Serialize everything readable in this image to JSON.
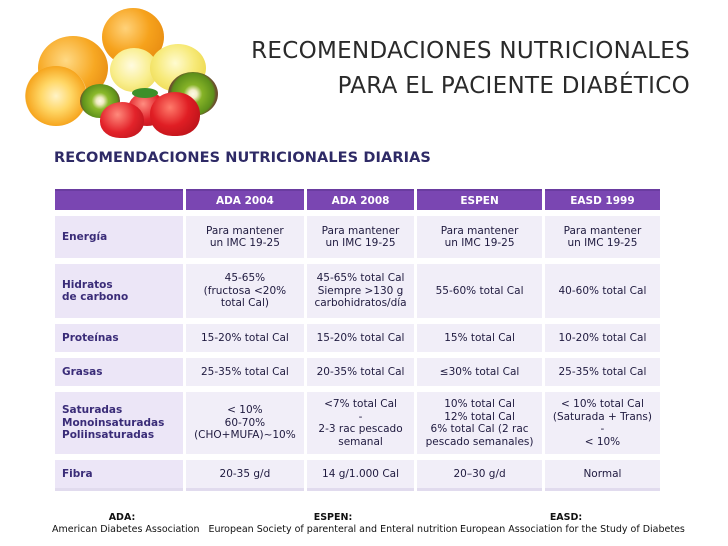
{
  "title": {
    "line1": "RECOMENDACIONES NUTRICIONALES",
    "line2": "PARA EL PACIENTE DIABÉTICO"
  },
  "table_heading": "RECOMENDACIONES NUTRICIONALES DIARIAS",
  "table": {
    "columns": [
      "ADA 2004",
      "ADA 2008",
      "ESPEN",
      "EASD 1999"
    ],
    "rows": [
      {
        "label": [
          "Energía"
        ],
        "cells": [
          [
            "Para mantener",
            "un IMC 19-25"
          ],
          [
            "Para mantener",
            "un IMC 19-25"
          ],
          [
            "Para mantener",
            "un IMC 19-25"
          ],
          [
            "Para mantener",
            "un IMC 19-25"
          ]
        ]
      },
      {
        "label": [
          "Hidratos",
          "de carbono"
        ],
        "cells": [
          [
            "45-65%",
            "(fructosa <20%",
            "total Cal)"
          ],
          [
            "45-65% total Cal",
            "Siempre >130 g",
            "carbohidratos/día"
          ],
          [
            "55-60% total Cal"
          ],
          [
            "40-60% total Cal"
          ]
        ]
      },
      {
        "label": [
          "Proteínas"
        ],
        "cells": [
          [
            "15-20% total Cal"
          ],
          [
            "15-20% total Cal"
          ],
          [
            "15% total Cal"
          ],
          [
            "10-20% total Cal"
          ]
        ]
      },
      {
        "label": [
          "Grasas"
        ],
        "cells": [
          [
            "25-35% total Cal"
          ],
          [
            "20-35% total Cal"
          ],
          [
            "≤30% total Cal"
          ],
          [
            "25-35% total Cal"
          ]
        ]
      },
      {
        "label": [
          "Saturadas",
          "Monoinsaturadas",
          "Poliinsaturadas"
        ],
        "cells": [
          [
            "< 10%",
            "60-70%",
            "(CHO+MUFA)~10%"
          ],
          [
            "<7% total Cal",
            "-",
            "2-3 rac pescado",
            "semanal"
          ],
          [
            "10% total Cal",
            "12% total Cal",
            "6% total Cal (2 rac",
            "pescado semanales)"
          ],
          [
            "< 10% total Cal",
            "(Saturada + Trans)",
            "-",
            "< 10%"
          ]
        ]
      },
      {
        "label": [
          "Fibra"
        ],
        "cells": [
          [
            "20-35 g/d"
          ],
          [
            "14 g/1.000 Cal"
          ],
          [
            "20–30 g/d"
          ],
          [
            "Normal"
          ]
        ]
      }
    ]
  },
  "footnotes": [
    {
      "abbr": "ADA:",
      "full": "American Diabetes Association"
    },
    {
      "abbr": "ESPEN:",
      "full": "European Society of parenteral and Enteral nutrition"
    },
    {
      "abbr": "EASD:",
      "full": "European Association for the Study of Diabetes"
    }
  ],
  "icons": {
    "decoration": "fruit-illustration"
  }
}
